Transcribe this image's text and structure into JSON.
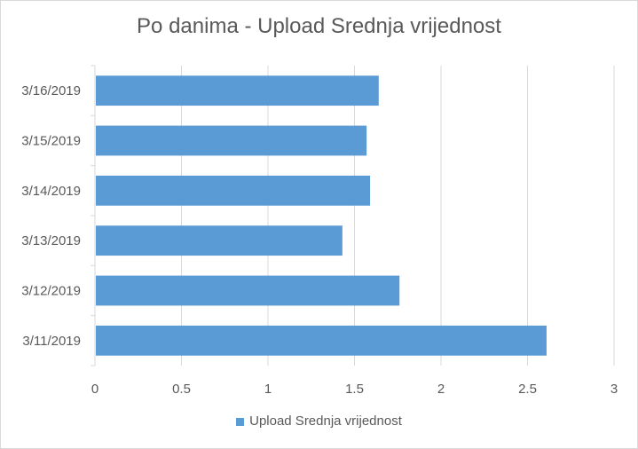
{
  "chart_data": {
    "type": "bar",
    "orientation": "horizontal",
    "title": "Po danima - Upload Srednja vrijednost",
    "categories": [
      "3/11/2019",
      "3/12/2019",
      "3/13/2019",
      "3/14/2019",
      "3/15/2019",
      "3/16/2019"
    ],
    "series": [
      {
        "name": "Upload Srednja vrijednost",
        "values": [
          2.61,
          1.76,
          1.43,
          1.59,
          1.57,
          1.64
        ],
        "color": "#5b9bd5"
      }
    ],
    "xlim": [
      0,
      3
    ],
    "x_ticks": [
      "0",
      "0.5",
      "1",
      "1.5",
      "2",
      "2.5",
      "3"
    ],
    "grid": "vertical",
    "legend": "bottom"
  }
}
